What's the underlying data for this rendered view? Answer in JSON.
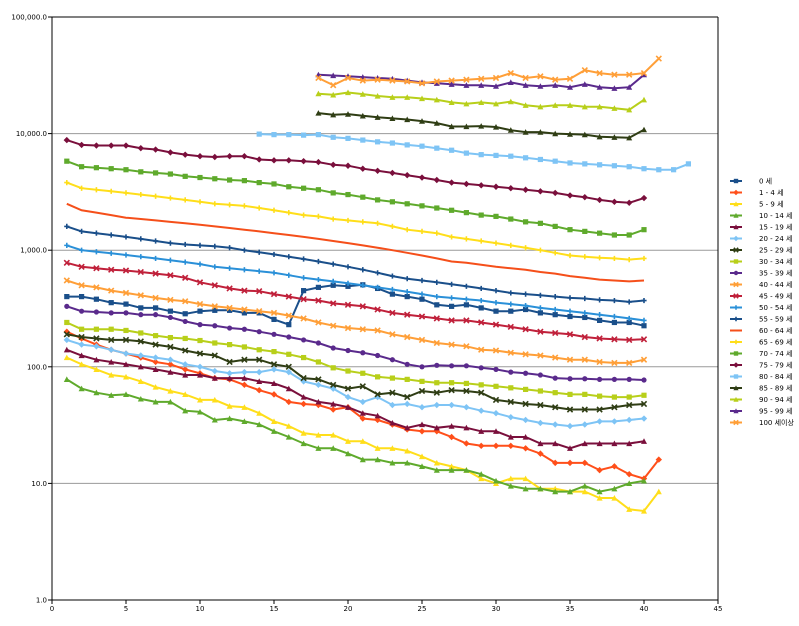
{
  "chart_data": {
    "type": "line",
    "title": "",
    "xlabel": "",
    "ylabel": "",
    "xlim": [
      0,
      45
    ],
    "ylim": [
      1,
      100000
    ],
    "yscale": "log",
    "grid": "horizontal major",
    "legend_position": "right",
    "x_tick_labels": [
      "0",
      "5",
      "10",
      "15",
      "20",
      "25",
      "30",
      "35",
      "40",
      "45"
    ],
    "y_tick_labels": [
      "1.0",
      "10.0",
      "100.0",
      "1,000.0",
      "10,000.0",
      "100,000.0"
    ],
    "series": [
      {
        "name": "0 세",
        "color": "#1a4f8a",
        "marker": "square",
        "x_start": 1,
        "values": [
          400,
          400,
          380,
          355,
          345,
          320,
          320,
          300,
          285,
          300,
          305,
          305,
          290,
          290,
          255,
          230,
          450,
          480,
          500,
          490,
          505,
          470,
          420,
          400,
          380,
          340,
          330,
          340,
          320,
          300,
          300,
          310,
          290,
          280,
          270,
          265,
          250,
          240,
          240,
          225
        ]
      },
      {
        "name": "1 - 4 세",
        "color": "#ff4f1a",
        "marker": "diamond",
        "x_start": 1,
        "values": [
          200,
          175,
          155,
          140,
          130,
          120,
          110,
          105,
          95,
          88,
          80,
          78,
          70,
          63,
          58,
          50,
          48,
          47,
          43,
          45,
          36,
          35,
          32,
          29,
          28,
          28,
          25,
          22,
          21,
          21,
          21,
          20,
          18,
          15,
          15,
          15,
          13,
          14,
          12,
          11,
          16
        ]
      },
      {
        "name": "5 - 9 세",
        "color": "#ffde1a",
        "marker": "triangle",
        "x_start": 1,
        "values": [
          120,
          105,
          95,
          85,
          82,
          75,
          67,
          62,
          58,
          52,
          52,
          46,
          45,
          40,
          34,
          31,
          27,
          26,
          26,
          23,
          23,
          20,
          20,
          19,
          17,
          15,
          14,
          13,
          11,
          10,
          11,
          11,
          9,
          9,
          8.5,
          8.5,
          7.5,
          7.5,
          6,
          5.8,
          8.5
        ]
      },
      {
        "name": "10 - 14 세",
        "color": "#5faa2c",
        "marker": "triangle",
        "x_start": 1,
        "values": [
          78,
          65,
          60,
          57,
          58,
          53,
          50,
          50,
          42,
          41,
          35,
          36,
          34,
          32,
          28,
          25,
          22,
          20,
          20,
          18,
          16,
          16,
          15,
          15,
          14,
          13,
          13,
          13,
          12,
          10.5,
          9.5,
          9,
          9,
          8.5,
          8.5,
          9.5,
          8.5,
          9,
          10,
          10.5
        ]
      },
      {
        "name": "15 - 19 세",
        "color": "#7a0f3c",
        "marker": "triangle",
        "x_start": 1,
        "values": [
          140,
          125,
          115,
          110,
          105,
          100,
          95,
          90,
          85,
          85,
          80,
          80,
          80,
          75,
          72,
          65,
          55,
          50,
          48,
          45,
          40,
          38,
          33,
          30,
          32,
          30,
          31,
          30,
          28,
          28,
          25,
          25,
          22,
          22,
          20,
          22,
          22,
          22,
          22,
          23
        ]
      },
      {
        "name": "20 - 24 세",
        "color": "#7ec4f5",
        "marker": "diamond",
        "x_start": 1,
        "values": [
          170,
          155,
          150,
          140,
          130,
          125,
          120,
          115,
          105,
          100,
          92,
          88,
          90,
          90,
          95,
          90,
          75,
          70,
          65,
          55,
          50,
          55,
          47,
          48,
          45,
          47,
          47,
          45,
          42,
          40,
          37,
          35,
          33,
          32,
          31,
          32,
          34,
          34,
          35,
          36
        ]
      },
      {
        "name": "25 - 29 세",
        "color": "#2f3d14",
        "marker": "x",
        "x_start": 1,
        "values": [
          190,
          180,
          175,
          170,
          170,
          165,
          155,
          148,
          138,
          130,
          125,
          110,
          115,
          115,
          105,
          100,
          80,
          78,
          70,
          65,
          68,
          58,
          60,
          55,
          62,
          60,
          63,
          62,
          60,
          52,
          50,
          48,
          47,
          45,
          43,
          43,
          43,
          45,
          47,
          48
        ]
      },
      {
        "name": "30 - 34 세",
        "color": "#b8cf1a",
        "marker": "square",
        "x_start": 1,
        "values": [
          240,
          210,
          210,
          210,
          205,
          195,
          185,
          178,
          175,
          168,
          160,
          155,
          148,
          140,
          135,
          128,
          120,
          110,
          98,
          92,
          88,
          82,
          80,
          78,
          75,
          73,
          73,
          72,
          70,
          68,
          66,
          64,
          62,
          60,
          58,
          58,
          56,
          55,
          55,
          57
        ]
      },
      {
        "name": "35 - 39 세",
        "color": "#5a2a8c",
        "marker": "circle",
        "x_start": 1,
        "values": [
          330,
          300,
          295,
          290,
          290,
          280,
          280,
          265,
          245,
          230,
          225,
          215,
          210,
          200,
          190,
          180,
          170,
          160,
          145,
          138,
          132,
          125,
          115,
          105,
          100,
          103,
          102,
          102,
          98,
          95,
          90,
          88,
          85,
          80,
          79,
          79,
          78,
          78,
          78,
          77
        ]
      },
      {
        "name": "40 - 44 세",
        "color": "#ff9f38",
        "marker": "x",
        "x_start": 1,
        "values": [
          550,
          500,
          480,
          450,
          430,
          410,
          390,
          375,
          365,
          345,
          330,
          320,
          310,
          300,
          290,
          275,
          260,
          240,
          225,
          215,
          210,
          205,
          190,
          180,
          170,
          160,
          155,
          150,
          140,
          138,
          132,
          128,
          125,
          120,
          115,
          115,
          110,
          108,
          108,
          115
        ]
      },
      {
        "name": "45 - 49 세",
        "color": "#c0203a",
        "marker": "x",
        "x_start": 1,
        "values": [
          780,
          720,
          700,
          680,
          670,
          650,
          630,
          610,
          580,
          530,
          500,
          470,
          450,
          445,
          420,
          400,
          380,
          370,
          350,
          340,
          330,
          310,
          290,
          280,
          270,
          260,
          250,
          250,
          240,
          230,
          220,
          210,
          200,
          195,
          190,
          180,
          175,
          172,
          170,
          172
        ]
      },
      {
        "name": "50 - 54 세",
        "color": "#2a90d8",
        "marker": "plus",
        "x_start": 1,
        "values": [
          1100,
          1000,
          970,
          940,
          910,
          880,
          850,
          820,
          790,
          760,
          720,
          700,
          680,
          660,
          640,
          610,
          580,
          560,
          540,
          520,
          500,
          480,
          460,
          440,
          420,
          400,
          390,
          380,
          370,
          355,
          345,
          335,
          320,
          310,
          300,
          290,
          280,
          270,
          260,
          250
        ]
      },
      {
        "name": "55 - 59 세",
        "color": "#1a4f8a",
        "marker": "plus",
        "x_start": 1,
        "values": [
          1600,
          1450,
          1400,
          1350,
          1300,
          1250,
          1200,
          1150,
          1120,
          1100,
          1080,
          1050,
          1000,
          960,
          920,
          880,
          840,
          800,
          760,
          720,
          680,
          640,
          600,
          570,
          550,
          530,
          510,
          490,
          470,
          450,
          430,
          420,
          410,
          400,
          390,
          385,
          375,
          370,
          360,
          370
        ]
      },
      {
        "name": "60 - 64 세",
        "color": "#f54f1a",
        "marker": "none",
        "x_start": 1,
        "values": [
          2500,
          2200,
          2100,
          2000,
          1900,
          1850,
          1800,
          1750,
          1700,
          1650,
          1600,
          1550,
          1500,
          1450,
          1400,
          1350,
          1300,
          1250,
          1200,
          1150,
          1100,
          1050,
          1000,
          950,
          900,
          850,
          800,
          780,
          750,
          720,
          700,
          680,
          650,
          630,
          600,
          580,
          560,
          550,
          540,
          550
        ]
      },
      {
        "name": "65 - 69 세",
        "color": "#ffde1a",
        "marker": "plus",
        "x_start": 1,
        "values": [
          3800,
          3400,
          3300,
          3200,
          3100,
          3000,
          2900,
          2800,
          2700,
          2600,
          2500,
          2450,
          2400,
          2300,
          2200,
          2100,
          2000,
          1950,
          1850,
          1800,
          1750,
          1700,
          1600,
          1500,
          1450,
          1400,
          1300,
          1250,
          1200,
          1150,
          1100,
          1050,
          1000,
          950,
          900,
          880,
          860,
          850,
          830,
          850
        ]
      },
      {
        "name": "70 - 74 세",
        "color": "#5faa2c",
        "marker": "square",
        "x_start": 1,
        "values": [
          5800,
          5200,
          5100,
          5000,
          4900,
          4700,
          4600,
          4500,
          4300,
          4200,
          4100,
          4000,
          3950,
          3800,
          3700,
          3500,
          3400,
          3300,
          3100,
          3000,
          2850,
          2700,
          2600,
          2500,
          2400,
          2300,
          2200,
          2100,
          2000,
          1950,
          1850,
          1750,
          1700,
          1600,
          1500,
          1450,
          1400,
          1350,
          1350,
          1500
        ]
      },
      {
        "name": "75 - 79 세",
        "color": "#7a0f3c",
        "marker": "diamond",
        "x_start": 1,
        "values": [
          8800,
          8000,
          7900,
          7900,
          7900,
          7500,
          7300,
          6900,
          6600,
          6400,
          6300,
          6400,
          6400,
          6000,
          5900,
          5900,
          5800,
          5700,
          5400,
          5300,
          5000,
          4800,
          4600,
          4400,
          4200,
          4000,
          3800,
          3700,
          3600,
          3500,
          3400,
          3300,
          3200,
          3100,
          2950,
          2850,
          2700,
          2600,
          2550,
          2800
        ]
      },
      {
        "name": "80 - 84 세",
        "color": "#7ec4f5",
        "marker": "square",
        "x_start": 14,
        "values": [
          9900,
          9800,
          9800,
          9700,
          9800,
          9300,
          9100,
          8800,
          8500,
          8300,
          8000,
          7800,
          7500,
          7200,
          6800,
          6600,
          6500,
          6400,
          6200,
          6000,
          5800,
          5600,
          5500,
          5400,
          5300,
          5200,
          5000,
          4900,
          4900,
          5500
        ]
      },
      {
        "name": "85 - 89 세",
        "color": "#2f3d14",
        "marker": "triangle",
        "x_start": 18,
        "values": [
          15000,
          14500,
          14700,
          14200,
          13800,
          13500,
          13200,
          12800,
          12300,
          11500,
          11500,
          11600,
          11400,
          10700,
          10300,
          10300,
          10000,
          9900,
          9800,
          9400,
          9300,
          9200,
          10800
        ]
      },
      {
        "name": "90 - 94 세",
        "color": "#b8cf1a",
        "marker": "triangle",
        "x_start": 18,
        "values": [
          22000,
          21500,
          22500,
          21800,
          21000,
          20500,
          20500,
          20000,
          19500,
          18500,
          18000,
          18500,
          18000,
          18800,
          17500,
          17000,
          17500,
          17500,
          17000,
          17000,
          16500,
          16000,
          19500
        ]
      },
      {
        "name": "95 - 99 세",
        "color": "#5a2a8c",
        "marker": "triangle",
        "x_start": 18,
        "values": [
          32000,
          31500,
          31000,
          30500,
          30000,
          29500,
          28500,
          27500,
          27000,
          26500,
          26000,
          26000,
          25500,
          27500,
          26000,
          25500,
          26000,
          25000,
          26500,
          25000,
          24500,
          25000,
          32000
        ]
      },
      {
        "name": "100 세이상",
        "color": "#ff9f38",
        "marker": "x",
        "x_start": 18,
        "values": [
          30000,
          26000,
          30000,
          28500,
          29000,
          28500,
          28000,
          27000,
          28000,
          28500,
          29000,
          29500,
          30000,
          33000,
          30000,
          31000,
          29000,
          29500,
          35000,
          33000,
          32000,
          32000,
          33000,
          44000
        ]
      }
    ]
  }
}
